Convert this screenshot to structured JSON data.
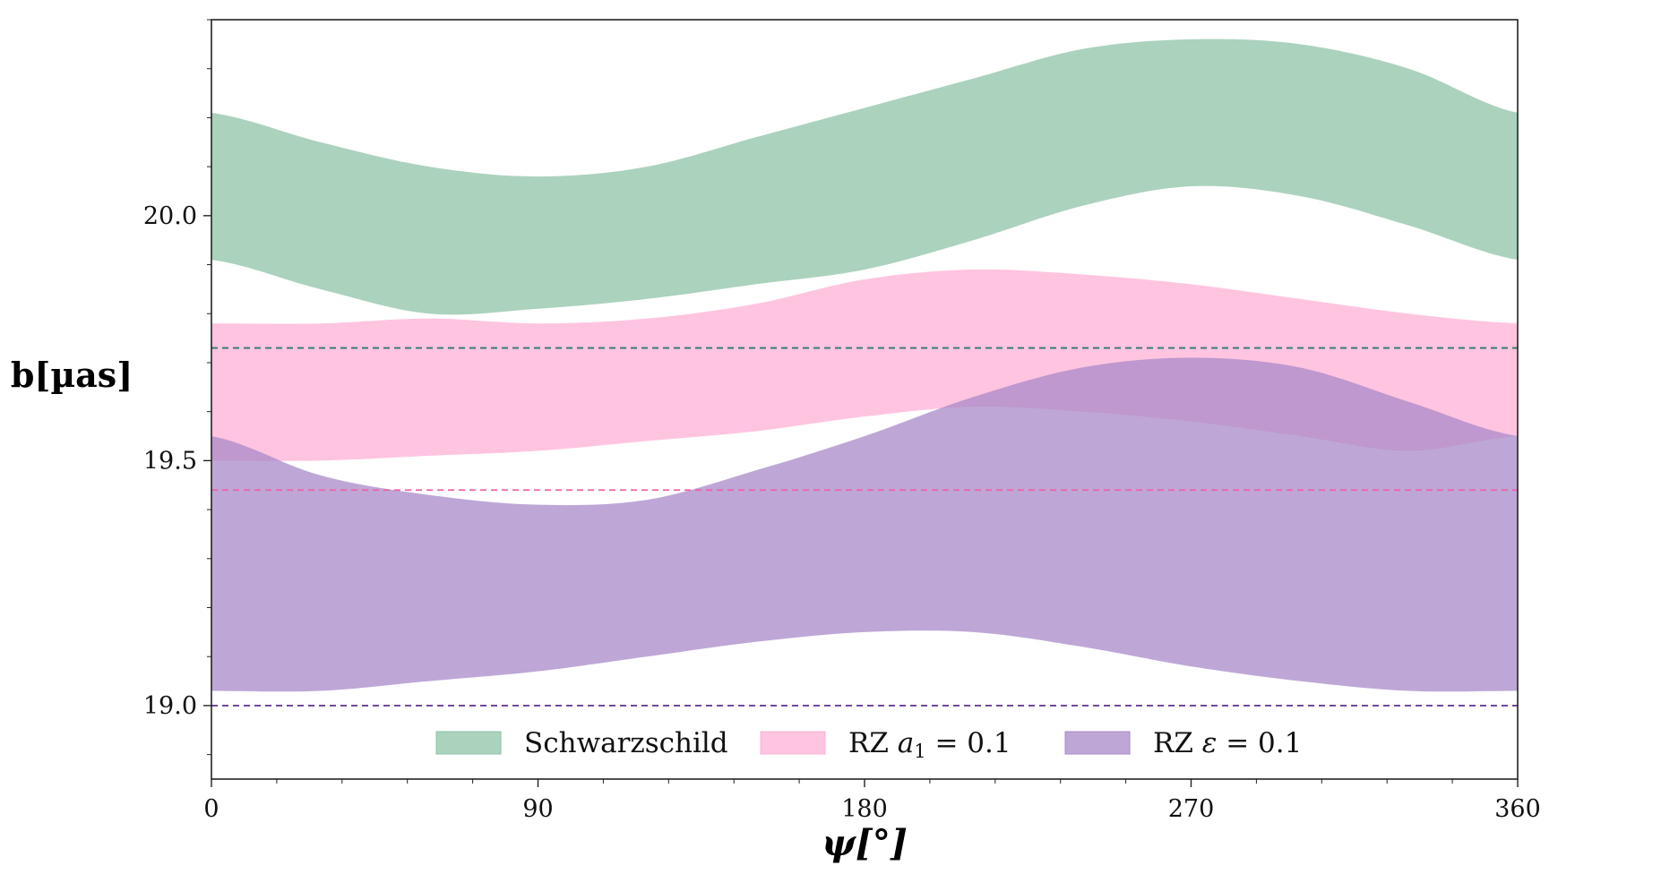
{
  "chart_data": {
    "type": "area",
    "title": "",
    "xlabel": "ψ[°]",
    "ylabel": "b[µas]",
    "xlim": [
      0,
      360
    ],
    "ylim": [
      18.85,
      20.4
    ],
    "x_ticks": [
      0,
      90,
      180,
      270,
      360
    ],
    "x_tick_labels": [
      "0",
      "90",
      "180",
      "270",
      "360"
    ],
    "y_ticks": [
      19.0,
      19.5,
      20.0
    ],
    "y_tick_labels": [
      "19.0",
      "19.5",
      "20.0"
    ],
    "series": [
      {
        "name": "Schwarzschild",
        "color": "#8fc3a7",
        "line_color": "#2e7a6a",
        "reference_line": 19.73,
        "x": [
          0,
          30,
          60,
          90,
          120,
          150,
          180,
          210,
          240,
          270,
          300,
          330,
          360
        ],
        "upper": [
          20.21,
          20.15,
          20.1,
          20.08,
          20.1,
          20.16,
          20.22,
          20.28,
          20.34,
          20.36,
          20.35,
          20.3,
          20.21
        ],
        "lower": [
          19.91,
          19.85,
          19.8,
          19.81,
          19.83,
          19.86,
          19.89,
          19.95,
          20.02,
          20.06,
          20.04,
          19.98,
          19.91
        ]
      },
      {
        "name": "RZ a₁ = 0.1",
        "label_prefix": "RZ ",
        "label_symbol": "a",
        "label_subscript": "1",
        "label_suffix": " = 0.1",
        "color": "#ffb0d6",
        "line_color": "#f25fa6",
        "reference_line": 19.44,
        "x": [
          0,
          30,
          60,
          90,
          120,
          150,
          180,
          210,
          240,
          270,
          300,
          330,
          360
        ],
        "upper": [
          19.78,
          19.78,
          19.79,
          19.78,
          19.79,
          19.82,
          19.87,
          19.89,
          19.88,
          19.86,
          19.83,
          19.8,
          19.78
        ],
        "lower": [
          19.5,
          19.5,
          19.51,
          19.52,
          19.54,
          19.56,
          19.59,
          19.61,
          19.6,
          19.58,
          19.55,
          19.52,
          19.55
        ]
      },
      {
        "name": "RZ ε = 0.1",
        "label_prefix": "RZ ",
        "label_symbol": "ε",
        "label_subscript": "",
        "label_suffix": " = 0.1",
        "color": "#a88ac8",
        "line_color": "#6a3d9a",
        "reference_line": 19.0,
        "x": [
          0,
          30,
          60,
          90,
          120,
          150,
          180,
          210,
          240,
          270,
          300,
          330,
          360
        ],
        "upper": [
          19.55,
          19.47,
          19.43,
          19.41,
          19.42,
          19.48,
          19.55,
          19.63,
          19.69,
          19.71,
          19.69,
          19.62,
          19.55
        ],
        "lower": [
          19.03,
          19.03,
          19.05,
          19.07,
          19.1,
          19.13,
          19.15,
          19.15,
          19.12,
          19.08,
          19.05,
          19.03,
          19.03
        ]
      }
    ],
    "legend_position": "bottom-center"
  }
}
